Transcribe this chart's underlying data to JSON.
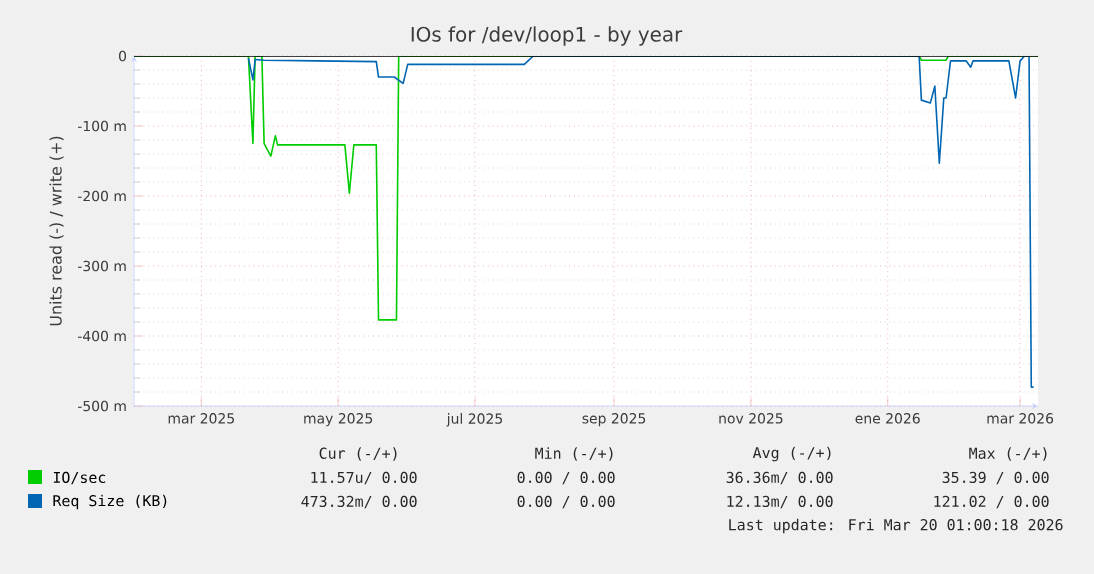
{
  "chart_data": {
    "type": "line",
    "title": "IOs for /dev/loop1 - by year",
    "ylabel": "Units read (-) / write (+)",
    "xlim": [
      "2025-01-30",
      "2026-03-09"
    ],
    "xticks": [
      {
        "value": "2025-03-01",
        "label": "mar 2025"
      },
      {
        "value": "2025-05-01",
        "label": "may 2025"
      },
      {
        "value": "2025-07-01",
        "label": "jul 2025"
      },
      {
        "value": "2025-09-01",
        "label": "sep 2025"
      },
      {
        "value": "2025-11-01",
        "label": "nov 2025"
      },
      {
        "value": "2026-01-01",
        "label": "ene 2026"
      },
      {
        "value": "2026-03-01",
        "label": "mar 2026"
      }
    ],
    "ylim": [
      -500,
      0
    ],
    "yticks": [
      0,
      {
        "value": -100,
        "label": "-100 m"
      },
      {
        "value": -200,
        "label": "-200 m"
      },
      {
        "value": -300,
        "label": "-300 m"
      },
      {
        "value": -400,
        "label": "-400 m"
      },
      {
        "value": -500,
        "label": "-500 m"
      }
    ],
    "grid": true,
    "legend": "bottom",
    "series": [
      {
        "name": "IO/sec",
        "color": "#00cc00",
        "x": [
          "2025-01-30",
          "2025-03-22",
          "2025-03-24",
          "2025-03-25",
          "2025-03-28",
          "2025-03-29",
          "2025-04-01",
          "2025-04-03",
          "2025-04-04",
          "2025-05-04",
          "2025-05-06",
          "2025-05-08",
          "2025-05-18",
          "2025-05-19",
          "2025-05-27",
          "2025-05-28",
          "2026-01-15",
          "2026-01-16",
          "2026-01-27",
          "2026-01-28",
          "2026-03-09"
        ],
        "values": [
          0,
          0,
          -125,
          0,
          0,
          -125,
          -143,
          -114,
          -127,
          -127,
          -196,
          -127,
          -127,
          -377,
          -377,
          0,
          0,
          -6,
          -6,
          0,
          0
        ]
      },
      {
        "name": "Req Size (KB)",
        "color": "#0066b3",
        "x": [
          "2025-03-22",
          "2025-03-24",
          "2025-03-25",
          "2025-03-29",
          "2025-04-22",
          "2025-05-18",
          "2025-05-19",
          "2025-05-26",
          "2025-05-30",
          "2025-06-01",
          "2025-07-23",
          "2025-07-27",
          "2026-01-15",
          "2026-01-16",
          "2026-01-20",
          "2026-01-22",
          "2026-01-24",
          "2026-01-26",
          "2026-01-27",
          "2026-01-29",
          "2026-02-05",
          "2026-02-07",
          "2026-02-08",
          "2026-02-24",
          "2026-02-27",
          "2026-03-01",
          "2026-03-03",
          "2026-03-05",
          "2026-03-06",
          "2026-03-07"
        ],
        "values": [
          -3,
          -34,
          -5,
          -6,
          -7,
          -8,
          -30,
          -30,
          -39,
          -12,
          -12,
          0,
          0,
          -63,
          -67,
          -43,
          -153,
          -60,
          -60,
          -7,
          -7,
          -16,
          -7,
          -7,
          -60,
          -7,
          0,
          0,
          -473,
          -473
        ]
      }
    ],
    "ref_lines": [
      {
        "axis": "y",
        "value": 0,
        "color": "#000000"
      }
    ],
    "annotations": [
      "Cur (-/+)",
      "Min (-/+)",
      "Avg (-/+)",
      "Max (-/+)",
      "11.57u/  0.00",
      "0.00 /  0.00",
      "36.36m/  0.00",
      "35.39 /  0.00",
      "473.32m/  0.00",
      "0.00 /  0.00",
      "12.13m/  0.00",
      "121.02 /  0.00",
      "Last update: Fri Mar 20 01:00:18 2026"
    ]
  }
}
